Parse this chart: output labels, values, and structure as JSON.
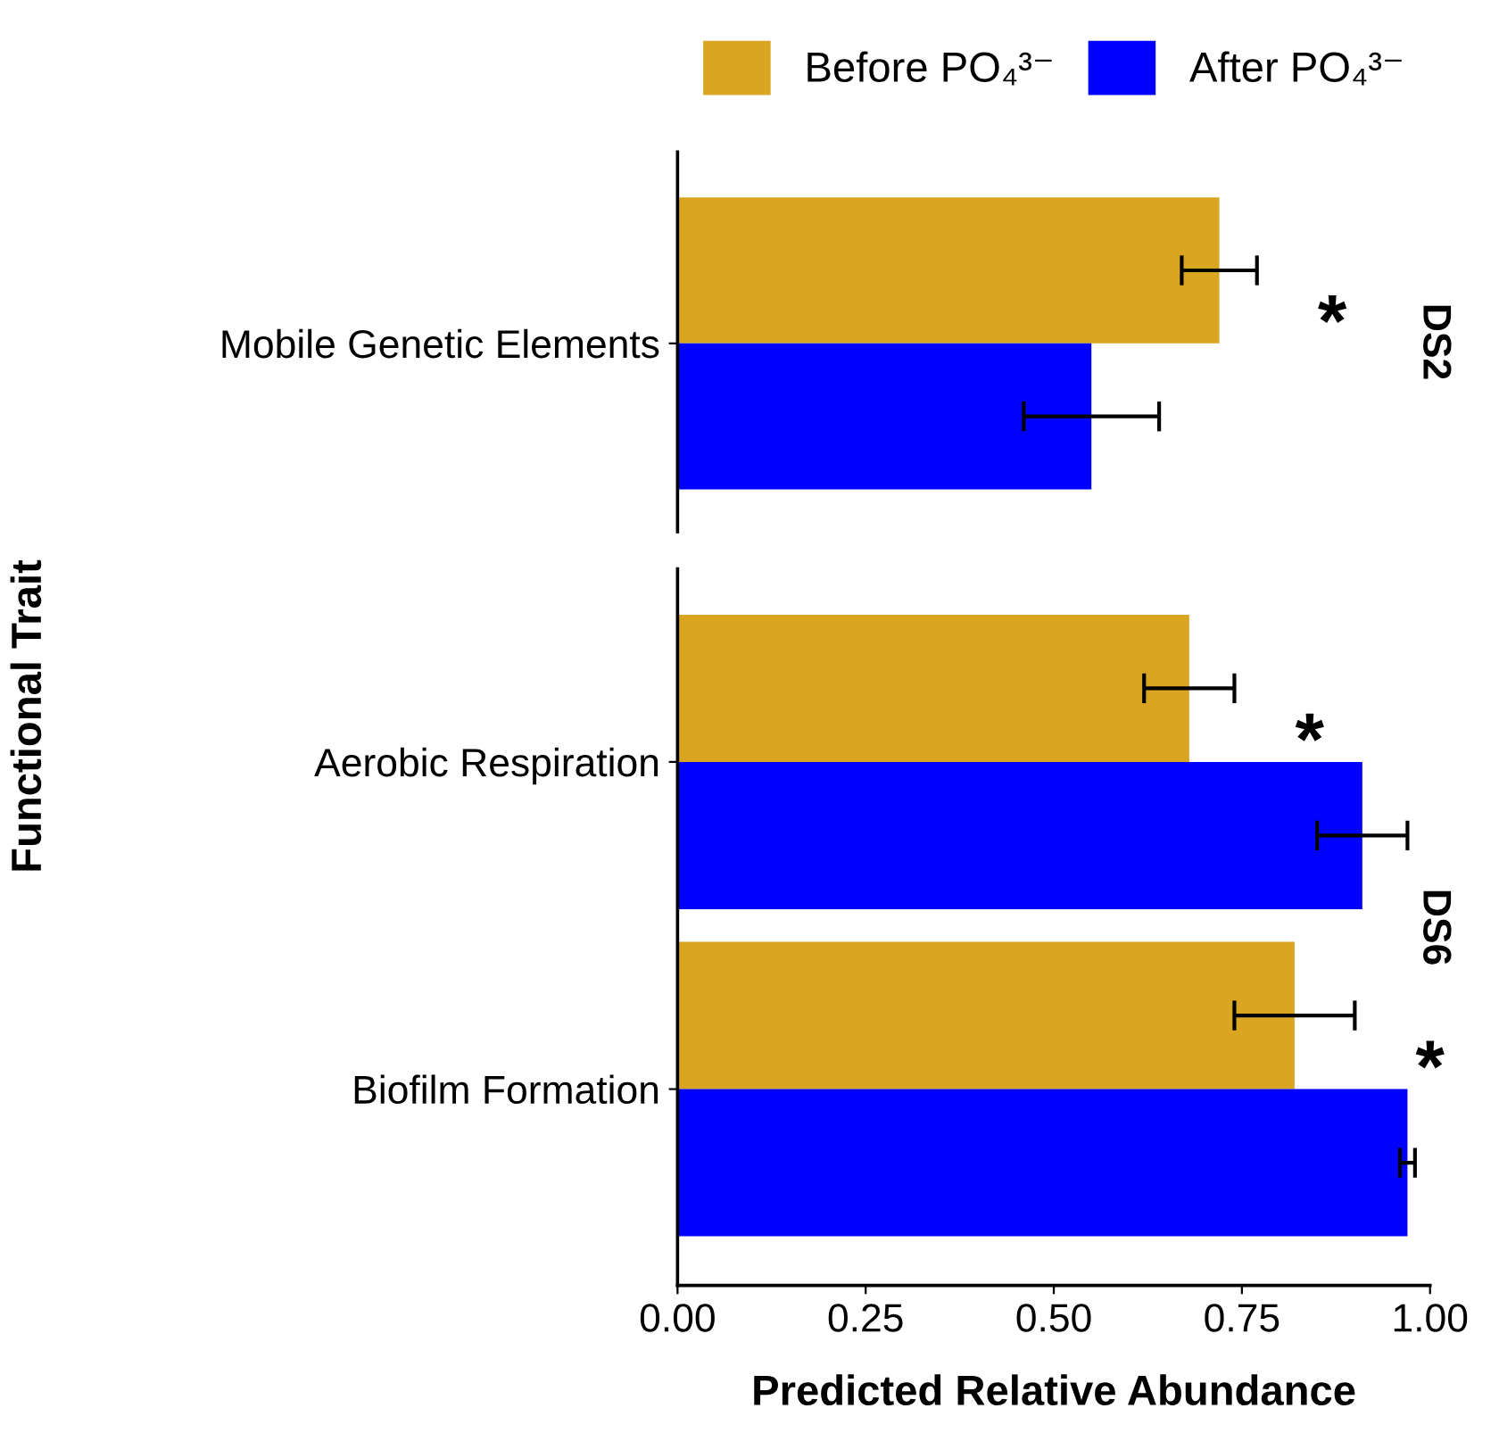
{
  "chart_data": [
    {
      "type": "bar",
      "orientation": "horizontal",
      "title": "DS2",
      "ylabel": "Functional Trait",
      "categories": [
        "Mobile Genetic Elements"
      ],
      "xlim": [
        0,
        1
      ],
      "legend": "top",
      "grid": false,
      "series": [
        {
          "name": "Before PO₄³⁻",
          "color": "#daa520",
          "values": [
            0.72
          ],
          "errors": [
            [
              0.67,
              0.77
            ]
          ]
        },
        {
          "name": "After PO₄³⁻",
          "color": "#0000ff",
          "values": [
            0.55
          ],
          "errors": [
            [
              0.46,
              0.64
            ]
          ]
        }
      ],
      "annotations": [
        "*"
      ]
    },
    {
      "type": "bar",
      "orientation": "horizontal",
      "title": "DS6",
      "xlabel": "Predicted Relative Abundance",
      "categories": [
        "Aerobic Respiration",
        "Biofilm Formation"
      ],
      "xlim": [
        0,
        1
      ],
      "xticks": [
        {
          "value": 0,
          "label": "0.00"
        },
        {
          "value": 0.25,
          "label": "0.25"
        },
        {
          "value": 0.5,
          "label": "0.50"
        },
        {
          "value": 0.75,
          "label": "0.75"
        },
        {
          "value": 1,
          "label": "1.00"
        }
      ],
      "grid": false,
      "series": [
        {
          "color": "#daa520",
          "values": [
            0.68,
            0.82
          ],
          "errors": [
            [
              0.62,
              0.74
            ],
            [
              0.74,
              0.9
            ]
          ]
        },
        {
          "color": "#0000ff",
          "values": [
            0.91,
            0.97
          ],
          "errors": [
            [
              0.85,
              0.97
            ],
            [
              0.96,
              0.98
            ]
          ]
        }
      ],
      "annotations": [
        "*",
        "*"
      ]
    }
  ]
}
